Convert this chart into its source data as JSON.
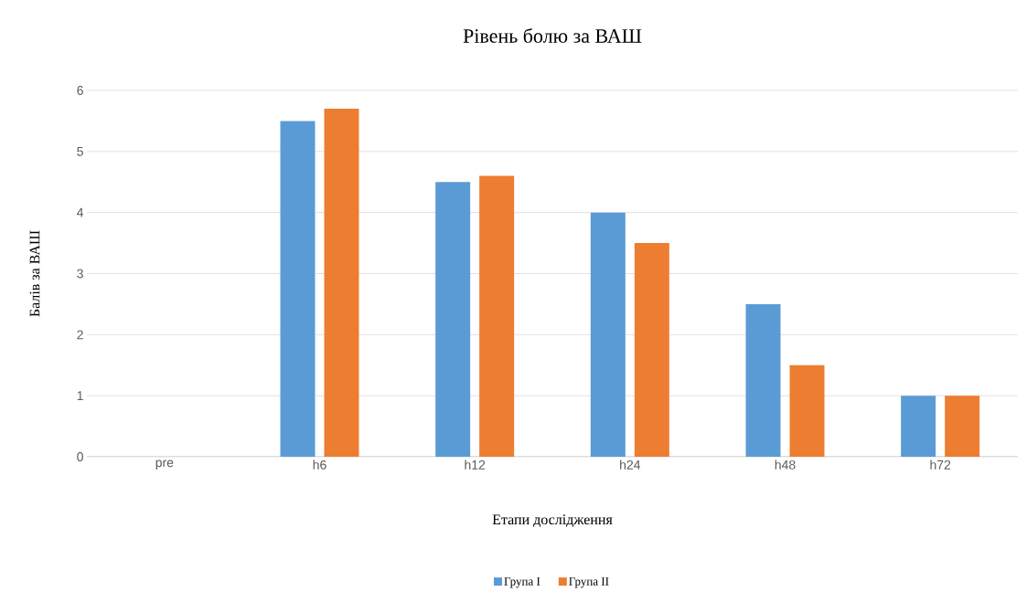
{
  "chart_data": {
    "type": "bar",
    "title": "Рівень болю за ВАШ",
    "xlabel": "Етапи дослідження",
    "ylabel": "Балів за ВАШ",
    "categories": [
      "pre",
      "h6",
      "h12",
      "h24",
      "h48",
      "h72"
    ],
    "series": [
      {
        "name": "Група I",
        "color": "#5b9bd5",
        "values": [
          0,
          5.5,
          4.5,
          4.0,
          2.5,
          1.0
        ]
      },
      {
        "name": "Група II",
        "color": "#ed7d31",
        "values": [
          0,
          5.7,
          4.6,
          3.5,
          1.5,
          1.0
        ]
      }
    ],
    "ylim": [
      0,
      6
    ],
    "yticks": [
      0,
      1,
      2,
      3,
      4,
      5,
      6
    ],
    "grid": "y",
    "legend": "bottom"
  }
}
